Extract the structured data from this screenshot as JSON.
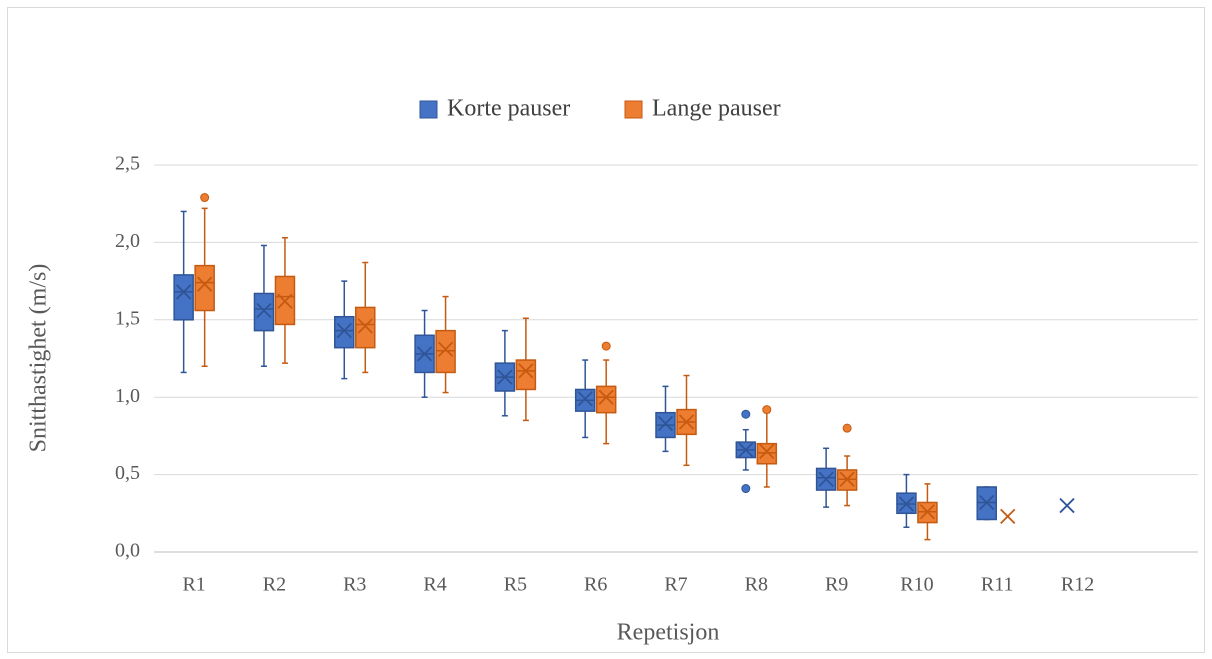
{
  "chart_data": {
    "type": "box",
    "x_label": "Repetisjon",
    "y_label": "Snitthastighet (m/s)",
    "categories": [
      "R1",
      "R2",
      "R3",
      "R4",
      "R5",
      "R6",
      "R7",
      "R8",
      "R9",
      "R10",
      "R11",
      "R12",
      null
    ],
    "ylim": [
      0,
      2.5
    ],
    "yticks": [
      {
        "value": 0,
        "label": "0,0"
      },
      {
        "value": 0.5,
        "label": "0,5"
      },
      {
        "value": 1,
        "label": "1,0"
      },
      {
        "value": 1.5,
        "label": "1,5"
      },
      {
        "value": 2,
        "label": "2,0"
      },
      {
        "value": 2.5,
        "label": "2,5"
      }
    ],
    "grid": true,
    "legend": "top",
    "series": [
      {
        "name": "Korte pauser",
        "color": "#4472c4",
        "edge": "#2f5597",
        "min": [
          1.16,
          1.2,
          1.12,
          1.0,
          0.88,
          0.74,
          0.65,
          0.53,
          0.29,
          0.16,
          0.21,
          null,
          null
        ],
        "q1": [
          1.5,
          1.43,
          1.32,
          1.16,
          1.04,
          0.91,
          0.74,
          0.61,
          0.4,
          0.25,
          0.21,
          null,
          null
        ],
        "median": [
          1.68,
          1.57,
          1.43,
          1.28,
          1.13,
          0.98,
          0.82,
          0.66,
          0.48,
          0.31,
          0.32,
          null,
          null
        ],
        "q3": [
          1.79,
          1.67,
          1.52,
          1.4,
          1.22,
          1.05,
          0.9,
          0.71,
          0.54,
          0.38,
          0.42,
          null,
          null
        ],
        "max": [
          2.2,
          1.98,
          1.75,
          1.56,
          1.43,
          1.24,
          1.07,
          0.79,
          0.67,
          0.5,
          0.42,
          null,
          null
        ],
        "mean": [
          1.68,
          1.56,
          1.43,
          1.28,
          1.13,
          0.99,
          0.83,
          0.66,
          0.47,
          0.31,
          0.32,
          0.3,
          null
        ],
        "outliers": [
          [],
          [],
          [],
          [],
          [],
          [],
          [],
          [
            0.89,
            0.41
          ],
          [],
          [],
          [],
          [],
          []
        ]
      },
      {
        "name": "Lange pauser",
        "color": "#ed7d31",
        "edge": "#c55a11",
        "min": [
          1.2,
          1.22,
          1.16,
          1.03,
          0.85,
          0.7,
          0.56,
          0.42,
          0.3,
          0.08,
          null,
          null,
          null
        ],
        "q1": [
          1.56,
          1.47,
          1.32,
          1.16,
          1.05,
          0.9,
          0.76,
          0.57,
          0.4,
          0.19,
          null,
          null,
          null
        ],
        "median": [
          1.74,
          1.65,
          1.47,
          1.3,
          1.17,
          1.0,
          0.84,
          0.64,
          0.47,
          0.26,
          null,
          null,
          null
        ],
        "q3": [
          1.85,
          1.78,
          1.58,
          1.43,
          1.24,
          1.07,
          0.92,
          0.7,
          0.53,
          0.32,
          null,
          null,
          null
        ],
        "max": [
          2.22,
          2.03,
          1.87,
          1.65,
          1.51,
          1.24,
          1.14,
          0.9,
          0.62,
          0.44,
          null,
          null,
          null
        ],
        "mean": [
          1.73,
          1.62,
          1.46,
          1.31,
          1.17,
          1.0,
          0.84,
          0.65,
          0.47,
          0.26,
          0.23,
          null,
          null
        ],
        "outliers": [
          [
            2.29
          ],
          [],
          [],
          [],
          [],
          [
            1.33
          ],
          [],
          [
            0.92
          ],
          [
            0.8
          ],
          [],
          [],
          [],
          []
        ]
      }
    ]
  }
}
